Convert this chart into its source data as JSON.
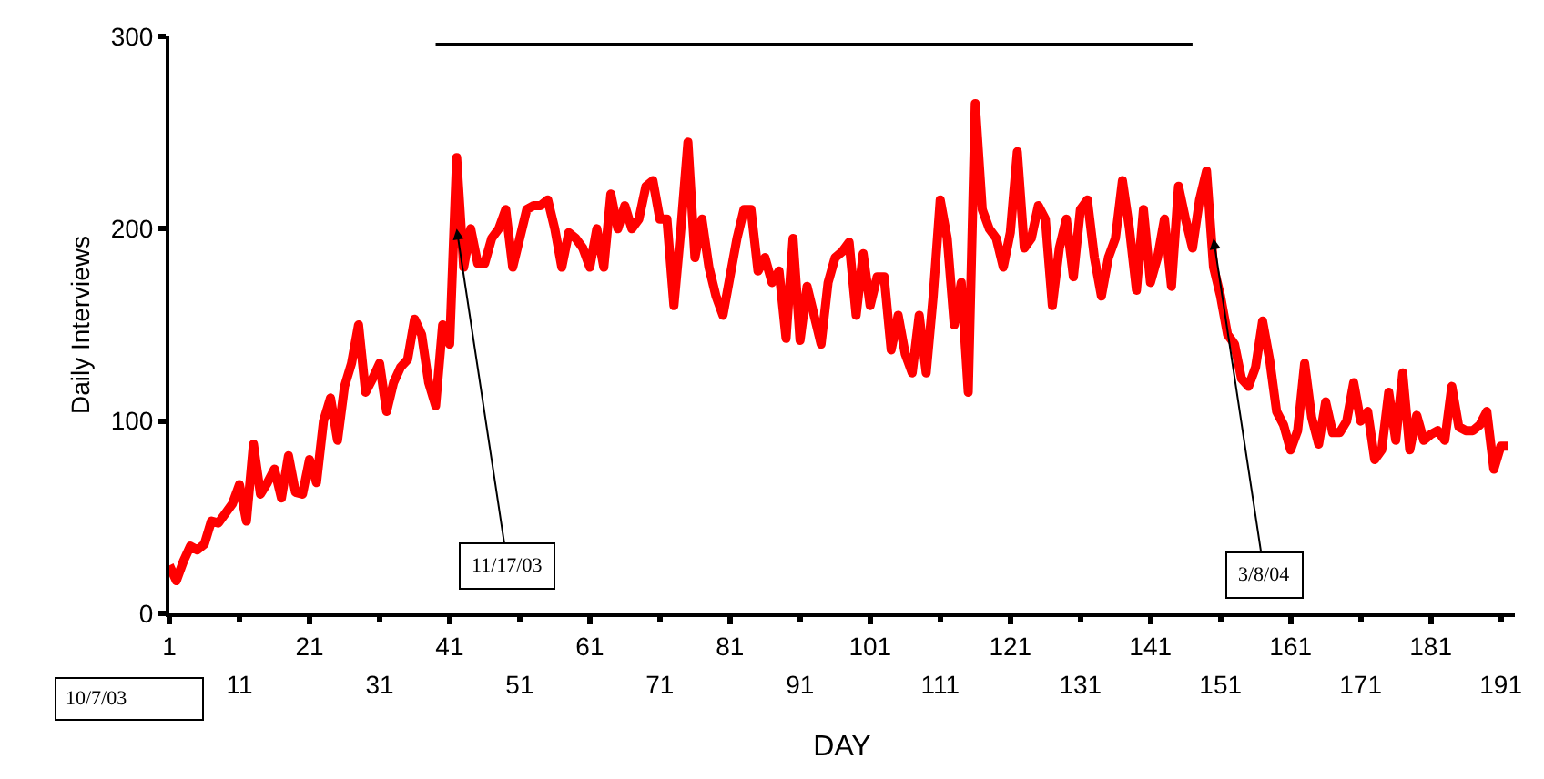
{
  "chart_data": {
    "type": "line",
    "xlabel": "DAY",
    "ylabel": "Daily Interviews",
    "x": [
      1,
      2,
      3,
      4,
      5,
      6,
      7,
      8,
      9,
      10,
      11,
      12,
      13,
      14,
      15,
      16,
      17,
      18,
      19,
      20,
      21,
      22,
      23,
      24,
      25,
      26,
      27,
      28,
      29,
      30,
      31,
      32,
      33,
      34,
      35,
      36,
      37,
      38,
      39,
      40,
      41,
      42,
      43,
      44,
      45,
      46,
      47,
      48,
      49,
      50,
      51,
      52,
      53,
      54,
      55,
      56,
      57,
      58,
      59,
      60,
      61,
      62,
      63,
      64,
      65,
      66,
      67,
      68,
      69,
      70,
      71,
      72,
      73,
      74,
      75,
      76,
      77,
      78,
      79,
      80,
      81,
      82,
      83,
      84,
      85,
      86,
      87,
      88,
      89,
      90,
      91,
      92,
      93,
      94,
      95,
      96,
      97,
      98,
      99,
      100,
      101,
      102,
      103,
      104,
      105,
      106,
      107,
      108,
      109,
      110,
      111,
      112,
      113,
      114,
      115,
      116,
      117,
      118,
      119,
      120,
      121,
      122,
      123,
      124,
      125,
      126,
      127,
      128,
      129,
      130,
      131,
      132,
      133,
      134,
      135,
      136,
      137,
      138,
      139,
      140,
      141,
      142,
      143,
      144,
      145,
      146,
      147,
      148,
      149,
      150,
      151,
      152,
      153,
      154,
      155,
      156,
      157,
      158,
      159,
      160,
      161,
      162,
      163,
      164,
      165,
      166,
      167,
      168,
      169,
      170,
      171,
      172,
      173,
      174,
      175,
      176,
      177,
      178,
      179,
      180,
      181,
      182,
      183,
      184,
      185,
      186,
      187,
      188,
      189,
      190,
      191,
      192
    ],
    "series": [
      {
        "color": "#ff0000",
        "values": [
          25,
          17,
          27,
          35,
          33,
          36,
          48,
          47,
          52,
          57,
          67,
          48,
          88,
          62,
          68,
          75,
          60,
          82,
          63,
          62,
          80,
          68,
          100,
          112,
          90,
          118,
          130,
          150,
          115,
          122,
          130,
          105,
          120,
          128,
          132,
          153,
          145,
          120,
          108,
          150,
          140,
          237,
          180,
          200,
          182,
          182,
          195,
          200,
          210,
          180,
          195,
          210,
          212,
          212,
          215,
          200,
          180,
          198,
          195,
          190,
          180,
          200,
          180,
          218,
          200,
          212,
          200,
          205,
          222,
          225,
          205,
          205,
          160,
          200,
          245,
          185,
          205,
          180,
          165,
          155,
          175,
          195,
          210,
          210,
          178,
          185,
          172,
          178,
          143,
          195,
          142,
          170,
          155,
          140,
          172,
          185,
          188,
          193,
          155,
          187,
          160,
          175,
          175,
          137,
          155,
          135,
          125,
          155,
          125,
          165,
          215,
          195,
          150,
          172,
          115,
          265,
          210,
          200,
          195,
          180,
          198,
          240,
          190,
          195,
          212,
          205,
          160,
          190,
          205,
          175,
          210,
          215,
          185,
          165,
          185,
          195,
          225,
          200,
          168,
          210,
          172,
          185,
          205,
          170,
          222,
          205,
          190,
          215,
          230,
          180,
          165,
          145,
          140,
          122,
          118,
          128,
          152,
          132,
          105,
          98,
          85,
          95,
          130,
          102,
          88,
          110,
          94,
          94,
          100,
          120,
          100,
          105,
          80,
          85,
          115,
          90,
          125,
          85,
          103,
          90,
          93,
          95,
          90,
          118,
          97,
          95,
          95,
          98,
          105,
          75,
          87,
          87
        ]
      },
      {
        "color": "#000000",
        "x": [
          39,
          147
        ],
        "values": [
          296,
          296
        ]
      }
    ],
    "xlim": [
      1,
      193
    ],
    "xticks": [
      1,
      21,
      41,
      61,
      81,
      101,
      121,
      141,
      161,
      181
    ],
    "ylim": [
      0,
      300
    ],
    "yticks": [
      0,
      100,
      200,
      300
    ],
    "marker": "none",
    "line_style": "solid",
    "x2lim": [
      1,
      193
    ],
    "x2ticks": [
      11,
      31,
      51,
      71,
      91,
      111,
      131,
      151,
      171,
      191
    ],
    "annotations": [
      "10/7/03",
      {
        "text": "11/17/03",
        "x": 42,
        "y": 200
      },
      {
        "text": "3/8/04",
        "x": 150,
        "y": 195
      }
    ]
  }
}
